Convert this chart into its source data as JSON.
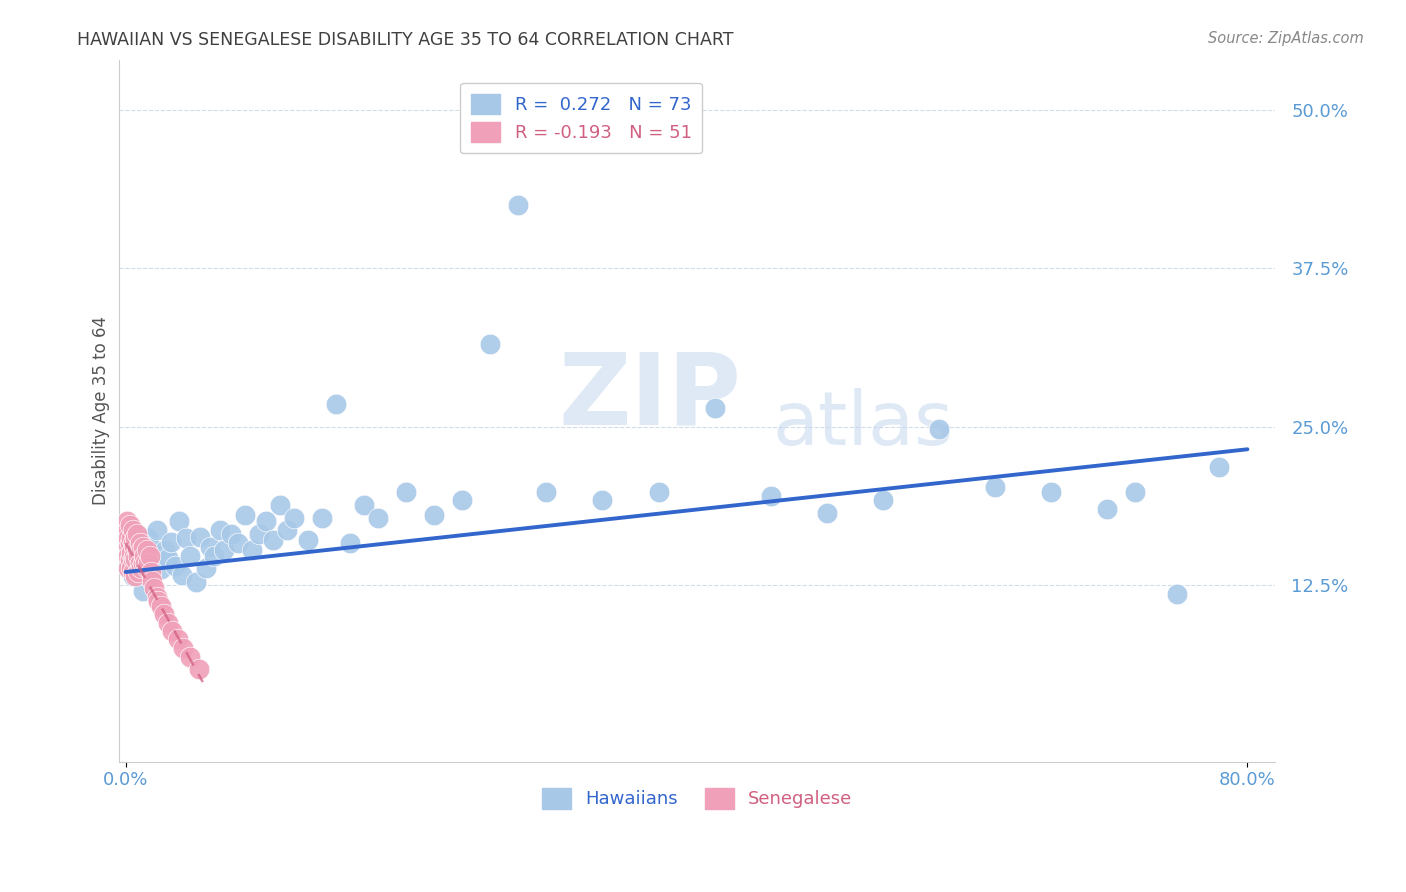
{
  "title": "HAWAIIAN VS SENEGALESE DISABILITY AGE 35 TO 64 CORRELATION CHART",
  "source": "Source: ZipAtlas.com",
  "ylabel_label": "Disability Age 35 to 64",
  "watermark_zip": "ZIP",
  "watermark_atlas": "atlas",
  "blue_color": "#a8c8e8",
  "pink_color": "#f0a0b8",
  "blue_line_color": "#3366cc",
  "pink_line_color": "#d06080",
  "axis_label_color": "#5b9bd5",
  "title_color": "#404040",
  "grid_color": "#d0dce8",
  "hawaiians_x": [
    0.001,
    0.002,
    0.003,
    0.003,
    0.004,
    0.005,
    0.005,
    0.006,
    0.007,
    0.008,
    0.009,
    0.01,
    0.011,
    0.012,
    0.013,
    0.014,
    0.015,
    0.016,
    0.017,
    0.018,
    0.02,
    0.022,
    0.025,
    0.028,
    0.03,
    0.032,
    0.035,
    0.038,
    0.04,
    0.043,
    0.046,
    0.05,
    0.053,
    0.057,
    0.06,
    0.063,
    0.067,
    0.07,
    0.075,
    0.08,
    0.085,
    0.09,
    0.095,
    0.1,
    0.105,
    0.11,
    0.115,
    0.12,
    0.13,
    0.14,
    0.15,
    0.16,
    0.17,
    0.18,
    0.2,
    0.22,
    0.24,
    0.26,
    0.28,
    0.3,
    0.34,
    0.38,
    0.42,
    0.46,
    0.5,
    0.54,
    0.58,
    0.62,
    0.66,
    0.7,
    0.72,
    0.75,
    0.78
  ],
  "hawaiians_y": [
    0.15,
    0.143,
    0.157,
    0.136,
    0.148,
    0.16,
    0.132,
    0.155,
    0.142,
    0.165,
    0.138,
    0.152,
    0.145,
    0.12,
    0.158,
    0.133,
    0.148,
    0.162,
    0.14,
    0.155,
    0.143,
    0.168,
    0.137,
    0.152,
    0.146,
    0.159,
    0.14,
    0.175,
    0.133,
    0.162,
    0.148,
    0.127,
    0.163,
    0.138,
    0.155,
    0.148,
    0.168,
    0.152,
    0.165,
    0.158,
    0.18,
    0.152,
    0.165,
    0.175,
    0.16,
    0.188,
    0.168,
    0.178,
    0.16,
    0.178,
    0.268,
    0.158,
    0.188,
    0.178,
    0.198,
    0.18,
    0.192,
    0.315,
    0.425,
    0.198,
    0.192,
    0.198,
    0.265,
    0.195,
    0.182,
    0.192,
    0.248,
    0.202,
    0.198,
    0.185,
    0.198,
    0.118,
    0.218
  ],
  "senegalese_x": [
    0.0005,
    0.001,
    0.001,
    0.0015,
    0.002,
    0.002,
    0.002,
    0.003,
    0.003,
    0.003,
    0.004,
    0.004,
    0.004,
    0.005,
    0.005,
    0.005,
    0.005,
    0.006,
    0.006,
    0.007,
    0.007,
    0.007,
    0.008,
    0.008,
    0.009,
    0.009,
    0.01,
    0.01,
    0.011,
    0.011,
    0.012,
    0.012,
    0.013,
    0.014,
    0.015,
    0.015,
    0.016,
    0.017,
    0.018,
    0.019,
    0.02,
    0.022,
    0.023,
    0.025,
    0.027,
    0.03,
    0.033,
    0.037,
    0.041,
    0.046,
    0.052
  ],
  "senegalese_y": [
    0.165,
    0.175,
    0.158,
    0.168,
    0.162,
    0.148,
    0.138,
    0.158,
    0.172,
    0.145,
    0.162,
    0.15,
    0.138,
    0.158,
    0.145,
    0.135,
    0.168,
    0.155,
    0.148,
    0.162,
    0.145,
    0.132,
    0.152,
    0.165,
    0.148,
    0.135,
    0.158,
    0.142,
    0.152,
    0.138,
    0.155,
    0.142,
    0.148,
    0.142,
    0.152,
    0.138,
    0.142,
    0.148,
    0.135,
    0.128,
    0.122,
    0.115,
    0.112,
    0.108,
    0.102,
    0.095,
    0.088,
    0.082,
    0.075,
    0.068,
    0.058
  ],
  "blue_line_x": [
    0.0,
    0.8
  ],
  "blue_line_y": [
    0.135,
    0.232
  ],
  "pink_line_x": [
    0.0,
    0.055
  ],
  "pink_line_y": [
    0.158,
    0.048
  ],
  "xlim": [
    -0.005,
    0.82
  ],
  "ylim": [
    -0.015,
    0.54
  ],
  "xticks": [
    0.0,
    0.8
  ],
  "yticks": [
    0.125,
    0.25,
    0.375,
    0.5
  ],
  "xtick_labels": [
    "0.0%",
    "80.0%"
  ],
  "ytick_labels": [
    "12.5%",
    "25.0%",
    "37.5%",
    "50.0%"
  ]
}
